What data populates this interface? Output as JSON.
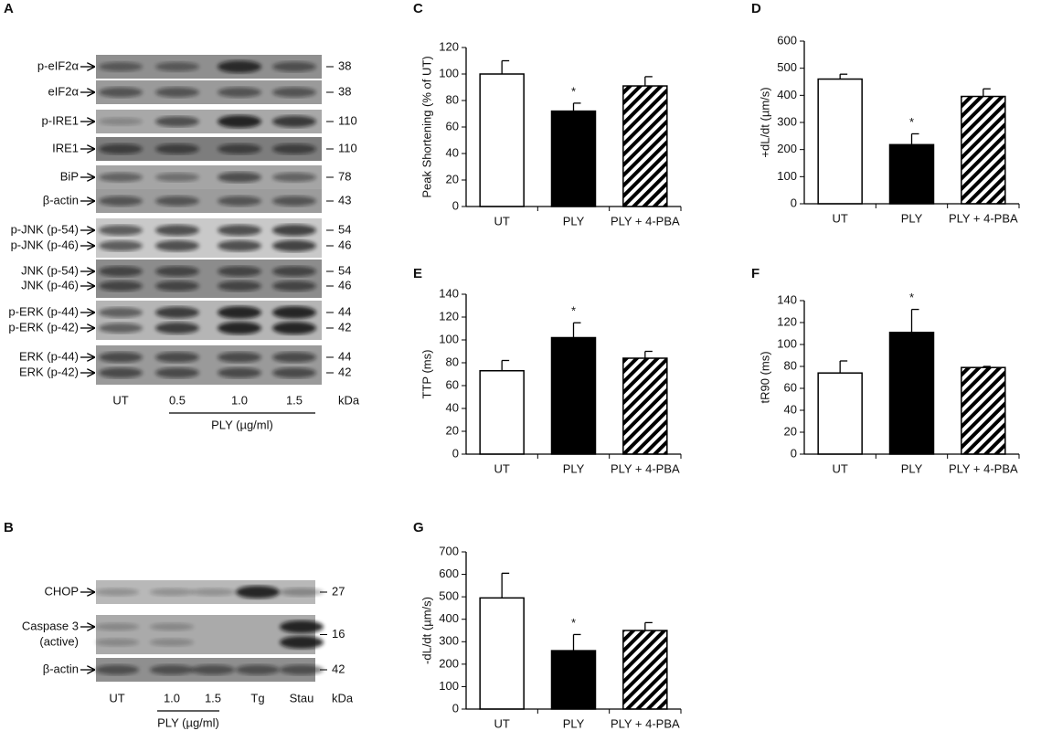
{
  "blot_a": {
    "letter": "A",
    "rows": [
      {
        "labels": [
          "p-eIF2α"
        ],
        "kda": [
          "38"
        ]
      },
      {
        "labels": [
          "eIF2α"
        ],
        "kda": [
          "38"
        ]
      },
      {
        "labels": [
          "p-IRE1"
        ],
        "kda": [
          "110"
        ]
      },
      {
        "labels": [
          "IRE1"
        ],
        "kda": [
          "110"
        ]
      },
      {
        "labels": [
          "BiP"
        ],
        "kda": [
          "78"
        ]
      },
      {
        "labels": [
          "β-actin"
        ],
        "kda": [
          "43"
        ]
      },
      {
        "labels": [
          "p-JNK (p-54)",
          "p-JNK (p-46)"
        ],
        "kda": [
          "54",
          "46"
        ]
      },
      {
        "labels": [
          "JNK (p-54)",
          "JNK (p-46)"
        ],
        "kda": [
          "54",
          "46"
        ]
      },
      {
        "labels": [
          "p-ERK (p-44)",
          "p-ERK (p-42)"
        ],
        "kda": [
          "44",
          "42"
        ]
      },
      {
        "labels": [
          "ERK (p-44)",
          "ERK (p-42)"
        ],
        "kda": [
          "44",
          "42"
        ]
      }
    ],
    "lanes": [
      "UT",
      "0.5",
      "1.0",
      "1.5"
    ],
    "unit": "kDa",
    "treatment": "PLY (µg/ml)"
  },
  "blot_b": {
    "letter": "B",
    "rows": [
      {
        "labels": [
          "CHOP"
        ],
        "kda": [
          "27"
        ]
      },
      {
        "labels": [
          "Caspase 3",
          "(active)"
        ],
        "kda": [
          "16"
        ]
      },
      {
        "labels": [
          "β-actin"
        ],
        "kda": [
          "42"
        ]
      }
    ],
    "lanes": [
      "UT",
      "1.0",
      "1.5",
      "Tg",
      "Stau"
    ],
    "unit": "kDa",
    "treatment": "PLY (µg/ml)"
  },
  "chart_data": [
    {
      "type": "bar",
      "letter": "C",
      "y_label": "Peak Shortening (% of UT)",
      "categories": [
        "UT",
        "PLY",
        "PLY + 4-PBA"
      ],
      "values": [
        100,
        72,
        91
      ],
      "errors": [
        10,
        6,
        7
      ],
      "bar_styles": [
        "open",
        "solid",
        "hatched"
      ],
      "ylim": [
        0,
        120
      ],
      "yticks": [
        0,
        20,
        40,
        60,
        80,
        100,
        120
      ],
      "annotations": [
        {
          "text": "*",
          "x": "PLY"
        }
      ]
    },
    {
      "type": "bar",
      "letter": "D",
      "y_label": "+dL/dt (µm/s)",
      "categories": [
        "UT",
        "PLY",
        "PLY + 4-PBA"
      ],
      "values": [
        460,
        218,
        396
      ],
      "errors": [
        18,
        40,
        28
      ],
      "bar_styles": [
        "open",
        "solid",
        "hatched"
      ],
      "ylim": [
        0,
        600
      ],
      "yticks": [
        0,
        100,
        200,
        300,
        400,
        500,
        600
      ],
      "annotations": [
        {
          "text": "*",
          "x": "PLY"
        }
      ]
    },
    {
      "type": "bar",
      "letter": "E",
      "y_label": "TTP (ms)",
      "categories": [
        "UT",
        "PLY",
        "PLY + 4-PBA"
      ],
      "values": [
        73,
        102,
        84
      ],
      "errors": [
        9,
        13,
        6
      ],
      "bar_styles": [
        "open",
        "solid",
        "hatched"
      ],
      "ylim": [
        0,
        140
      ],
      "yticks": [
        0,
        20,
        40,
        60,
        80,
        100,
        120,
        140
      ],
      "annotations": [
        {
          "text": "*",
          "x": "PLY"
        }
      ]
    },
    {
      "type": "bar",
      "letter": "F",
      "y_label": "tR90 (ms)",
      "categories": [
        "UT",
        "PLY",
        "PLY + 4-PBA"
      ],
      "values": [
        74,
        111,
        79
      ],
      "errors": [
        11,
        21,
        1
      ],
      "bar_styles": [
        "open",
        "solid",
        "hatched"
      ],
      "ylim": [
        0,
        140
      ],
      "yticks": [
        0,
        20,
        40,
        60,
        80,
        100,
        120,
        140
      ],
      "annotations": [
        {
          "text": "*",
          "x": "PLY"
        }
      ]
    },
    {
      "type": "bar",
      "letter": "G",
      "y_label": "-dL/dt (µm/s)",
      "categories": [
        "UT",
        "PLY",
        "PLY + 4-PBA"
      ],
      "values": [
        495,
        260,
        350
      ],
      "errors": [
        110,
        72,
        35
      ],
      "bar_styles": [
        "open",
        "solid",
        "hatched"
      ],
      "ylim": [
        0,
        700
      ],
      "yticks": [
        0,
        100,
        200,
        300,
        400,
        500,
        600,
        700
      ],
      "annotations": [
        {
          "text": "*",
          "x": "PLY"
        }
      ]
    }
  ]
}
